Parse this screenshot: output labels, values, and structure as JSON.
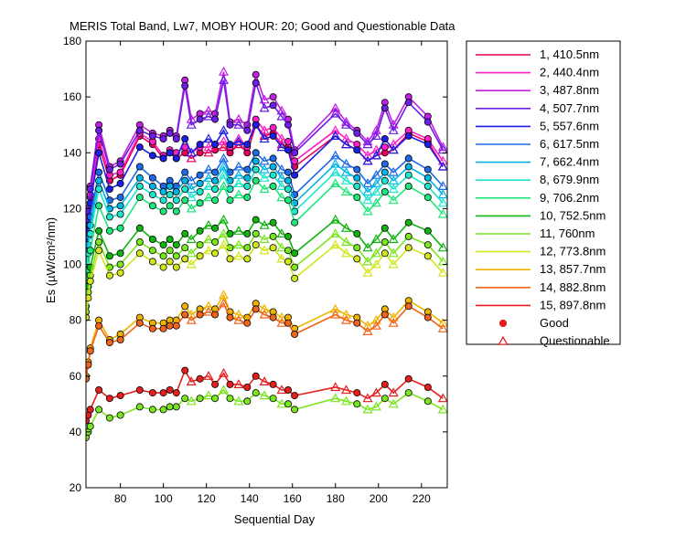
{
  "chart_data": {
    "type": "line",
    "title": "MERIS Total Band,  Lw7, MOBY HOUR: 20;  Good and Questionable Data",
    "xlabel": "Sequential Day",
    "ylabel": "Es (µW/cm²/nm)",
    "xlim": [
      64,
      232
    ],
    "ylim": [
      20,
      180
    ],
    "xticks": [
      80,
      100,
      120,
      140,
      160,
      180,
      200,
      220
    ],
    "yticks": [
      20,
      40,
      60,
      80,
      100,
      120,
      140,
      160,
      180
    ],
    "grid": false,
    "legend_position": "right",
    "x": [
      64,
      65,
      66,
      70,
      75,
      80,
      89,
      95,
      100,
      103,
      106,
      110,
      113,
      117,
      121,
      124,
      128,
      131,
      135,
      139,
      143,
      147,
      151,
      155,
      158,
      161,
      180,
      185,
      190,
      195,
      199,
      203,
      207,
      214,
      223,
      230
    ],
    "series": [
      {
        "name": "1, 410.5nm",
        "color": "#e8005a",
        "values": [
          108,
          116,
          124,
          143,
          130,
          132,
          146,
          143,
          138,
          140,
          138,
          140,
          138,
          140,
          140,
          141,
          142,
          140,
          143,
          140,
          150,
          146,
          147,
          143,
          142,
          135,
          146,
          143,
          141,
          137,
          139,
          140,
          141,
          147,
          144,
          135
        ]
      },
      {
        "name": "2, 440.4nm",
        "color": "#ff1ec8",
        "values": [
          109,
          117,
          125,
          145,
          132,
          133,
          147,
          144,
          139,
          141,
          140,
          142,
          140,
          142,
          142,
          143,
          144,
          142,
          145,
          142,
          152,
          148,
          149,
          145,
          144,
          137,
          148,
          145,
          143,
          139,
          141,
          142,
          143,
          148,
          145,
          137
        ]
      },
      {
        "name": "3, 487.8nm",
        "color": "#c41ee0",
        "values": [
          112,
          120,
          128,
          150,
          135,
          137,
          150,
          147,
          146,
          148,
          146,
          166,
          152,
          154,
          155,
          154,
          169,
          151,
          152,
          150,
          168,
          159,
          160,
          155,
          152,
          141,
          156,
          151,
          148,
          144,
          148,
          158,
          150,
          160,
          153,
          142
        ]
      },
      {
        "name": "4, 507.7nm",
        "color": "#6a1ee8",
        "values": [
          111,
          119,
          127,
          148,
          134,
          136,
          148,
          146,
          145,
          147,
          145,
          164,
          150,
          152,
          153,
          152,
          166,
          150,
          150,
          148,
          165,
          156,
          157,
          153,
          150,
          140,
          154,
          150,
          147,
          143,
          146,
          156,
          148,
          158,
          151,
          141
        ]
      },
      {
        "name": "5, 557.6nm",
        "color": "#1e1ee6",
        "values": [
          106,
          114,
          122,
          140,
          127,
          129,
          142,
          139,
          138,
          140,
          138,
          145,
          140,
          143,
          145,
          143,
          148,
          143,
          144,
          143,
          150,
          145,
          146,
          142,
          141,
          132,
          146,
          143,
          141,
          137,
          139,
          145,
          141,
          146,
          143,
          135
        ]
      },
      {
        "name": "6, 617.5nm",
        "color": "#1e6ae8",
        "values": [
          102,
          110,
          117,
          133,
          123,
          124,
          135,
          131,
          128,
          130,
          128,
          133,
          130,
          132,
          134,
          133,
          138,
          133,
          135,
          134,
          140,
          137,
          138,
          134,
          133,
          125,
          139,
          136,
          134,
          129,
          132,
          136,
          133,
          138,
          134,
          128
        ]
      },
      {
        "name": "7, 662.4nm",
        "color": "#00b4e6",
        "values": [
          99,
          107,
          114,
          130,
          120,
          121,
          131,
          128,
          126,
          128,
          126,
          130,
          127,
          129,
          131,
          130,
          135,
          130,
          132,
          131,
          137,
          134,
          135,
          131,
          130,
          122,
          136,
          133,
          131,
          126,
          129,
          133,
          130,
          135,
          131,
          125
        ]
      },
      {
        "name": "8, 679.9nm",
        "color": "#1ee6cc",
        "values": [
          96,
          104,
          111,
          127,
          117,
          118,
          128,
          125,
          123,
          125,
          123,
          127,
          124,
          126,
          128,
          127,
          132,
          127,
          129,
          128,
          134,
          131,
          132,
          128,
          127,
          119,
          133,
          130,
          128,
          123,
          126,
          130,
          127,
          132,
          128,
          122
        ]
      },
      {
        "name": "9, 706.2nm",
        "color": "#1ee67a",
        "values": [
          90,
          98,
          105,
          121,
          112,
          113,
          124,
          121,
          119,
          121,
          119,
          123,
          120,
          122,
          124,
          123,
          128,
          123,
          125,
          124,
          130,
          127,
          128,
          124,
          123,
          115,
          129,
          126,
          124,
          119,
          122,
          126,
          123,
          128,
          124,
          118
        ]
      },
      {
        "name": "10, 752.5nm",
        "color": "#10b410",
        "values": [
          85,
          92,
          99,
          112,
          103,
          104,
          113,
          109,
          107,
          109,
          107,
          111,
          109,
          112,
          114,
          113,
          116,
          111,
          112,
          111,
          116,
          114,
          115,
          111,
          110,
          104,
          116,
          113,
          111,
          106,
          109,
          113,
          109,
          115,
          112,
          106
        ]
      },
      {
        "name": "11,  760nm",
        "color": "#7ae61e",
        "values": [
          83,
          90,
          96,
          108,
          99,
          100,
          108,
          105,
          103,
          105,
          103,
          106,
          104,
          107,
          109,
          108,
          111,
          106,
          107,
          106,
          111,
          109,
          110,
          106,
          105,
          99,
          111,
          108,
          106,
          101,
          104,
          108,
          104,
          110,
          107,
          101
        ]
      },
      {
        "name": "12, 773.8nm",
        "color": "#d2e61e",
        "values": [
          81,
          88,
          94,
          105,
          96,
          97,
          104,
          101,
          99,
          101,
          99,
          102,
          100,
          103,
          105,
          104,
          107,
          102,
          103,
          102,
          107,
          105,
          106,
          102,
          101,
          95,
          107,
          104,
          102,
          97,
          100,
          104,
          100,
          106,
          103,
          97
        ]
      },
      {
        "name": "13, 857.7nm",
        "color": "#f0b400",
        "values": [
          60,
          65,
          70,
          80,
          73,
          75,
          81,
          79,
          79,
          80,
          80,
          85,
          82,
          84,
          85,
          84,
          89,
          83,
          82,
          81,
          86,
          84,
          83,
          81,
          81,
          77,
          84,
          82,
          81,
          78,
          80,
          84,
          81,
          87,
          83,
          79
        ]
      },
      {
        "name": "14, 882.8nm",
        "color": "#f0641e",
        "values": [
          59,
          64,
          69,
          78,
          72,
          73,
          79,
          77,
          77,
          78,
          78,
          82,
          80,
          82,
          83,
          82,
          86,
          81,
          80,
          79,
          84,
          82,
          81,
          79,
          79,
          75,
          82,
          80,
          79,
          76,
          78,
          82,
          79,
          85,
          81,
          77
        ]
      },
      {
        "name": "15, 897.8nm",
        "color": "#e61e1e",
        "values": [
          44,
          46,
          48,
          55,
          52,
          53,
          55,
          54,
          54,
          55,
          54,
          62,
          58,
          59,
          60,
          57,
          61,
          57,
          57,
          56,
          60,
          58,
          57,
          55,
          55,
          53,
          56,
          55,
          54,
          52,
          54,
          57,
          54,
          59,
          56,
          52
        ]
      },
      {
        "name": "",
        "color": "#7ae61e",
        "values": [
          38,
          40,
          42,
          48,
          45,
          46,
          49,
          48,
          48,
          49,
          49,
          52,
          51,
          52,
          53,
          52,
          55,
          52,
          51,
          51,
          54,
          53,
          52,
          50,
          50,
          48,
          52,
          51,
          50,
          48,
          49,
          52,
          50,
          54,
          51,
          48
        ]
      }
    ],
    "qmask": [
      0,
      0,
      0,
      0,
      0,
      0,
      0,
      0,
      0,
      0,
      0,
      0,
      1,
      0,
      1,
      0,
      1,
      0,
      1,
      0,
      0,
      1,
      0,
      1,
      0,
      0,
      1,
      1,
      0,
      1,
      1,
      0,
      1,
      0,
      0,
      1
    ],
    "legend_markers": [
      {
        "label": "Good",
        "marker": "circle",
        "color": "#e61e1e"
      },
      {
        "label": "Questionable",
        "marker": "triangle",
        "color": "#e61e1e"
      }
    ]
  }
}
